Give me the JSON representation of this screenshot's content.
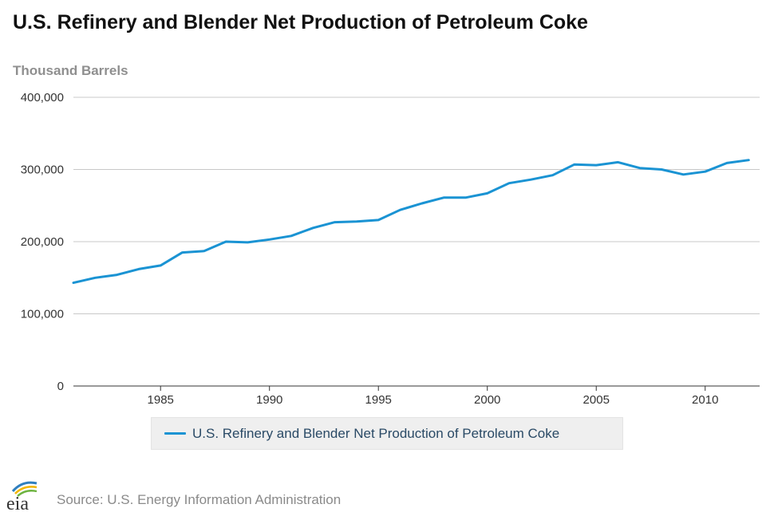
{
  "chart_data": {
    "type": "line",
    "title": "U.S. Refinery and Blender Net Production of Petroleum Coke",
    "ylabel": "Thousand Barrels",
    "xlabel": "",
    "ylim": [
      0,
      400000
    ],
    "xlim": [
      1981,
      2012
    ],
    "y_ticks": [
      0,
      100000,
      200000,
      300000,
      400000
    ],
    "y_tick_labels": [
      "0",
      "100,000",
      "200,000",
      "300,000",
      "400,000"
    ],
    "x_ticks": [
      1985,
      1990,
      1995,
      2000,
      2005,
      2010
    ],
    "x_tick_labels": [
      "1985",
      "1990",
      "1995",
      "2000",
      "2005",
      "2010"
    ],
    "grid": true,
    "legend_position": "bottom",
    "series": [
      {
        "name": "U.S. Refinery and Blender Net Production of Petroleum Coke",
        "color": "#1a93d3",
        "x": [
          1981,
          1982,
          1983,
          1984,
          1985,
          1986,
          1987,
          1988,
          1989,
          1990,
          1991,
          1992,
          1993,
          1994,
          1995,
          1996,
          1997,
          1998,
          1999,
          2000,
          2001,
          2002,
          2003,
          2004,
          2005,
          2006,
          2007,
          2008,
          2009,
          2010,
          2011,
          2012
        ],
        "values": [
          143000,
          150000,
          154000,
          162000,
          167000,
          185000,
          187000,
          200000,
          199000,
          203000,
          208000,
          219000,
          227000,
          228000,
          230000,
          244000,
          253000,
          261000,
          261000,
          267000,
          281000,
          286000,
          292000,
          307000,
          306000,
          310000,
          302000,
          300000,
          293000,
          297000,
          309000,
          313000
        ]
      }
    ]
  },
  "source_text": "Source: U.S. Energy Information Administration",
  "logo_text": "eia"
}
